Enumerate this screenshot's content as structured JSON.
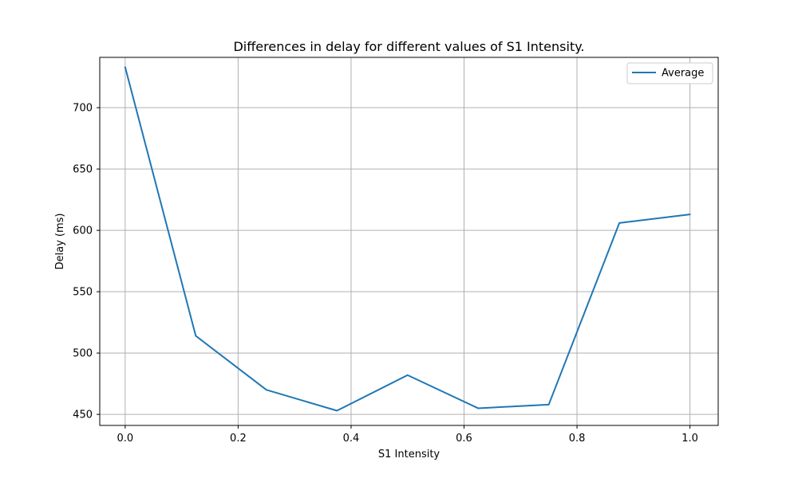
{
  "chart_data": {
    "type": "line",
    "title": "Differences in delay for different values of S1 Intensity.",
    "xlabel": "S1 Intensity",
    "ylabel": "Delay (ms)",
    "xlim": [
      -0.045,
      1.05
    ],
    "ylim": [
      441,
      741
    ],
    "xticks": [
      0.0,
      0.2,
      0.4,
      0.6,
      0.8,
      1.0
    ],
    "xtick_labels": [
      "0.0",
      "0.2",
      "0.4",
      "0.6",
      "0.8",
      "1.0"
    ],
    "yticks": [
      450,
      500,
      550,
      600,
      650,
      700
    ],
    "ytick_labels": [
      "450",
      "500",
      "550",
      "600",
      "650",
      "700"
    ],
    "grid": true,
    "legend_position": "top-right",
    "series": [
      {
        "name": "Average",
        "color": "#1f77b4",
        "x": [
          0.0,
          0.125,
          0.25,
          0.375,
          0.5,
          0.625,
          0.75,
          0.875,
          1.0
        ],
        "y": [
          733,
          514,
          470,
          453,
          482,
          455,
          458,
          606,
          613
        ]
      }
    ]
  }
}
